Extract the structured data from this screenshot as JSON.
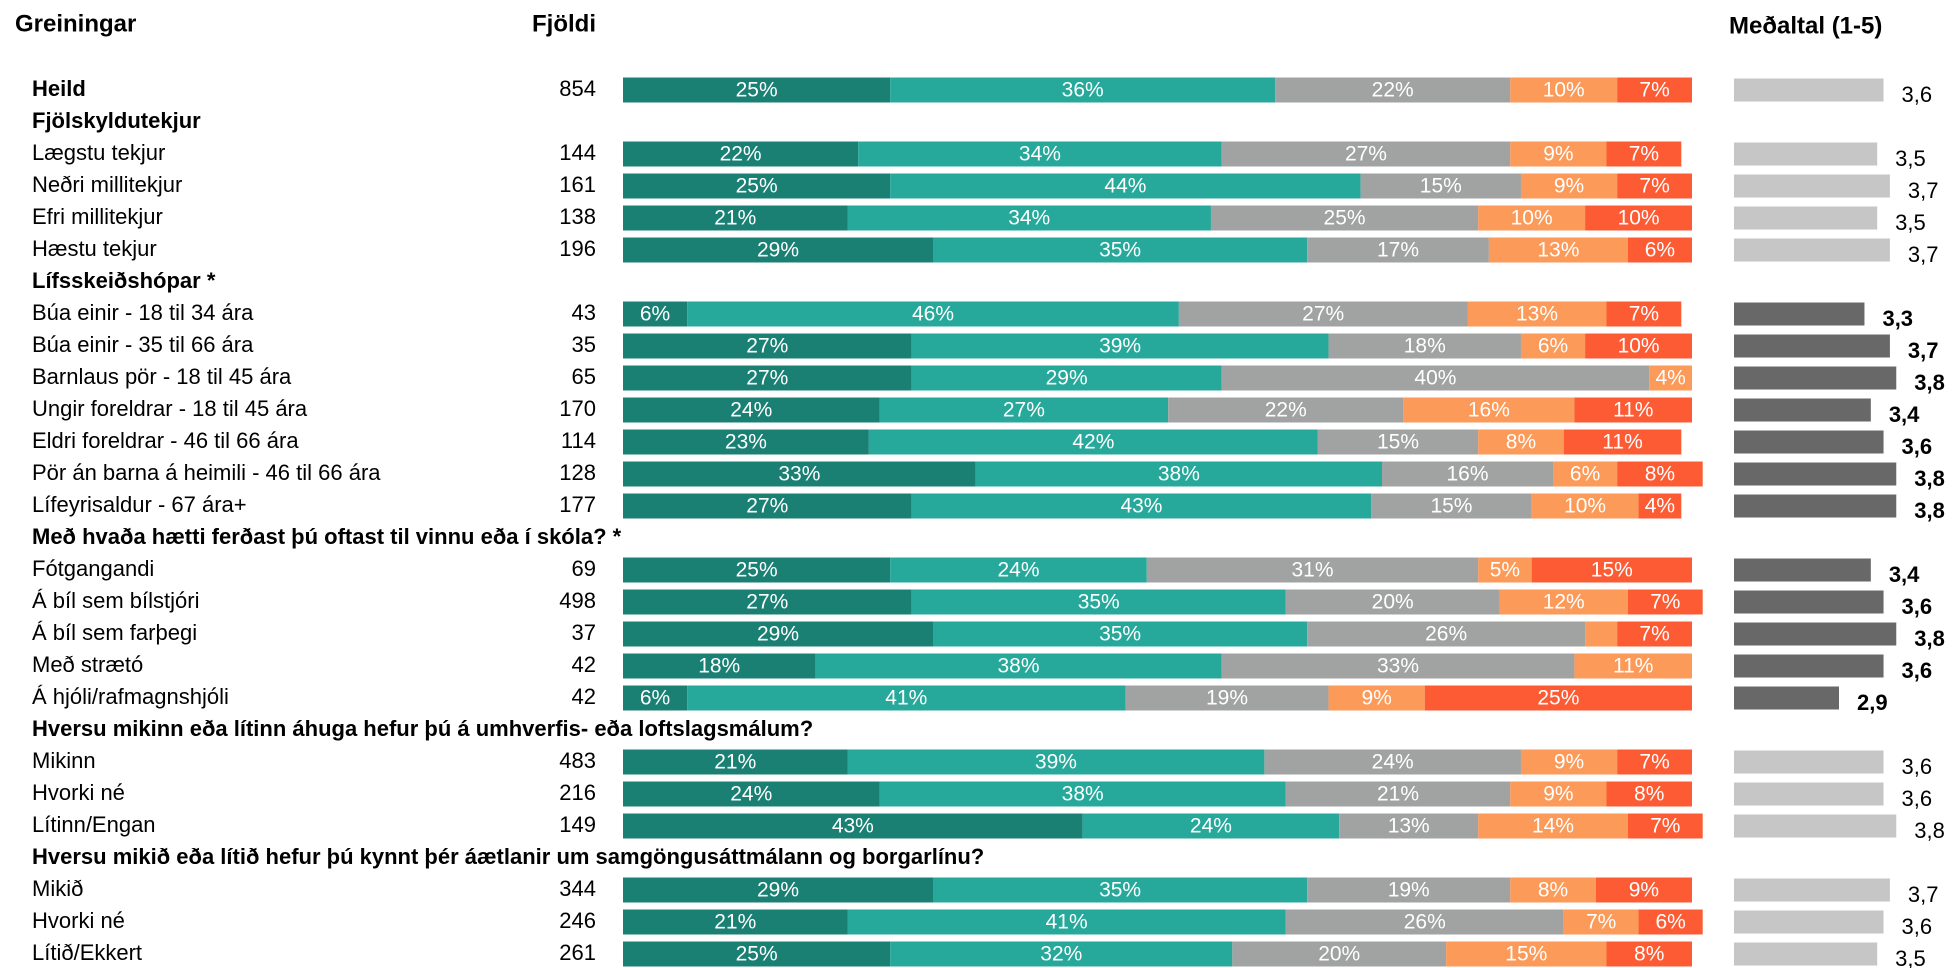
{
  "chart_data": {
    "type": "bar",
    "title": "Greiningar",
    "count_title": "Fjöldi",
    "mean_title": "Meðaltal (1-5)",
    "colors": [
      "#1b8074",
      "#26a99a",
      "#a0a3a2",
      "#fb9a59",
      "#fc5b34"
    ],
    "mean_colors": {
      "normal": "#c6c6c6",
      "highlight": "#686868"
    },
    "xlim": [
      0,
      100
    ],
    "mean_xlim": [
      1.25,
      4
    ],
    "total": {
      "label": "Heild",
      "n": 854,
      "values": [
        25,
        36,
        22,
        10,
        7
      ],
      "value_labels": [
        "25%",
        "36%",
        "22%",
        "10%",
        "7%"
      ],
      "mean": 3.6,
      "mean_label": "3,6"
    },
    "groups": [
      {
        "title": "Fjölskyldutekjur",
        "highlight": false,
        "rows": [
          {
            "label": "Lægstu tekjur",
            "n": 144,
            "values": [
              22,
              34,
              27,
              9,
              7
            ],
            "value_labels": [
              "22%",
              "34%",
              "27%",
              "9%",
              "7%"
            ],
            "mean": 3.5,
            "mean_label": "3,5"
          },
          {
            "label": "Neðri millitekjur",
            "n": 161,
            "values": [
              25,
              44,
              15,
              9,
              7
            ],
            "value_labels": [
              "25%",
              "44%",
              "15%",
              "9%",
              "7%"
            ],
            "mean": 3.7,
            "mean_label": "3,7"
          },
          {
            "label": "Efri millitekjur",
            "n": 138,
            "values": [
              21,
              34,
              25,
              10,
              10
            ],
            "value_labels": [
              "21%",
              "34%",
              "25%",
              "10%",
              "10%"
            ],
            "mean": 3.5,
            "mean_label": "3,5"
          },
          {
            "label": "Hæstu tekjur",
            "n": 196,
            "values": [
              29,
              35,
              17,
              13,
              6
            ],
            "value_labels": [
              "29%",
              "35%",
              "17%",
              "13%",
              "6%"
            ],
            "mean": 3.7,
            "mean_label": "3,7"
          }
        ]
      },
      {
        "title": "Lífsskeiðshópar *",
        "highlight": true,
        "rows": [
          {
            "label": "Búa einir - 18 til 34 ára",
            "n": 43,
            "values": [
              6,
              46,
              27,
              13,
              7
            ],
            "value_labels": [
              "6%",
              "46%",
              "27%",
              "13%",
              "7%"
            ],
            "mean": 3.3,
            "mean_label": "3,3"
          },
          {
            "label": "Búa einir - 35 til 66 ára",
            "n": 35,
            "values": [
              27,
              39,
              18,
              6,
              10
            ],
            "value_labels": [
              "27%",
              "39%",
              "18%",
              "6%",
              "10%"
            ],
            "mean": 3.7,
            "mean_label": "3,7"
          },
          {
            "label": "Barnlaus pör - 18 til 45 ára",
            "n": 65,
            "values": [
              27,
              29,
              40,
              4,
              0
            ],
            "value_labels": [
              "27%",
              "29%",
              "40%",
              "4%",
              null
            ],
            "mean": 3.8,
            "mean_label": "3,8"
          },
          {
            "label": "Ungir foreldrar - 18 til 45 ára",
            "n": 170,
            "values": [
              24,
              27,
              22,
              16,
              11
            ],
            "value_labels": [
              "24%",
              "27%",
              "22%",
              "16%",
              "11%"
            ],
            "mean": 3.4,
            "mean_label": "3,4"
          },
          {
            "label": "Eldri foreldrar - 46 til 66 ára",
            "n": 114,
            "values": [
              23,
              42,
              15,
              8,
              11
            ],
            "value_labels": [
              "23%",
              "42%",
              "15%",
              "8%",
              "11%"
            ],
            "mean": 3.6,
            "mean_label": "3,6"
          },
          {
            "label": "Pör án barna á heimili - 46 til 66 ára",
            "n": 128,
            "values": [
              33,
              38,
              16,
              6,
              8
            ],
            "value_labels": [
              "33%",
              "38%",
              "16%",
              "6%",
              "8%"
            ],
            "mean": 3.8,
            "mean_label": "3,8"
          },
          {
            "label": "Lífeyrisaldur - 67 ára+",
            "n": 177,
            "values": [
              27,
              43,
              15,
              10,
              4
            ],
            "value_labels": [
              "27%",
              "43%",
              "15%",
              "10%",
              "4%"
            ],
            "mean": 3.8,
            "mean_label": "3,8"
          }
        ]
      },
      {
        "title": "Með hvaða hætti ferðast þú oftast til vinnu eða í skóla? *",
        "highlight": true,
        "rows": [
          {
            "label": "Fótgangandi",
            "n": 69,
            "values": [
              25,
              24,
              31,
              5,
              15
            ],
            "value_labels": [
              "25%",
              "24%",
              "31%",
              "5%",
              "15%"
            ],
            "mean": 3.4,
            "mean_label": "3,4"
          },
          {
            "label": "Á bíl sem bílstjóri",
            "n": 498,
            "values": [
              27,
              35,
              20,
              12,
              7
            ],
            "value_labels": [
              "27%",
              "35%",
              "20%",
              "12%",
              "7%"
            ],
            "mean": 3.6,
            "mean_label": "3,6"
          },
          {
            "label": "Á bíl sem farþegi",
            "n": 37,
            "values": [
              29,
              35,
              26,
              3,
              7
            ],
            "value_labels": [
              "29%",
              "35%",
              "26%",
              null,
              "7%"
            ],
            "mean": 3.8,
            "mean_label": "3,8"
          },
          {
            "label": "Með strætó",
            "n": 42,
            "values": [
              18,
              38,
              33,
              11,
              0
            ],
            "value_labels": [
              "18%",
              "38%",
              "33%",
              "11%",
              null
            ],
            "mean": 3.6,
            "mean_label": "3,6"
          },
          {
            "label": "Á hjóli/rafmagnshjóli",
            "n": 42,
            "values": [
              6,
              41,
              19,
              9,
              25
            ],
            "value_labels": [
              "6%",
              "41%",
              "19%",
              "9%",
              "25%"
            ],
            "mean": 2.9,
            "mean_label": "2,9"
          }
        ]
      },
      {
        "title": "Hversu mikinn eða lítinn áhuga hefur þú á umhverfis- eða loftslagsmálum?",
        "highlight": false,
        "rows": [
          {
            "label": "Mikinn",
            "n": 483,
            "values": [
              21,
              39,
              24,
              9,
              7
            ],
            "value_labels": [
              "21%",
              "39%",
              "24%",
              "9%",
              "7%"
            ],
            "mean": 3.6,
            "mean_label": "3,6"
          },
          {
            "label": "Hvorki né",
            "n": 216,
            "values": [
              24,
              38,
              21,
              9,
              8
            ],
            "value_labels": [
              "24%",
              "38%",
              "21%",
              "9%",
              "8%"
            ],
            "mean": 3.6,
            "mean_label": "3,6"
          },
          {
            "label": "Lítinn/Engan",
            "n": 149,
            "values": [
              43,
              24,
              13,
              14,
              7
            ],
            "value_labels": [
              "43%",
              "24%",
              "13%",
              "14%",
              "7%"
            ],
            "mean": 3.8,
            "mean_label": "3,8"
          }
        ]
      },
      {
        "title": "Hversu mikið eða lítið hefur þú kynnt þér áætlanir um samgöngusáttmálann og borgarlínu?",
        "highlight": false,
        "rows": [
          {
            "label": "Mikið",
            "n": 344,
            "values": [
              29,
              35,
              19,
              8,
              9
            ],
            "value_labels": [
              "29%",
              "35%",
              "19%",
              "8%",
              "9%"
            ],
            "mean": 3.7,
            "mean_label": "3,7"
          },
          {
            "label": "Hvorki né",
            "n": 246,
            "values": [
              21,
              41,
              26,
              7,
              6
            ],
            "value_labels": [
              "21%",
              "41%",
              "26%",
              "7%",
              "6%"
            ],
            "mean": 3.6,
            "mean_label": "3,6"
          },
          {
            "label": "Lítið/Ekkert",
            "n": 261,
            "values": [
              25,
              32,
              20,
              15,
              8
            ],
            "value_labels": [
              "25%",
              "32%",
              "20%",
              "15%",
              "8%"
            ],
            "mean": 3.5,
            "mean_label": "3,5"
          }
        ]
      }
    ]
  }
}
